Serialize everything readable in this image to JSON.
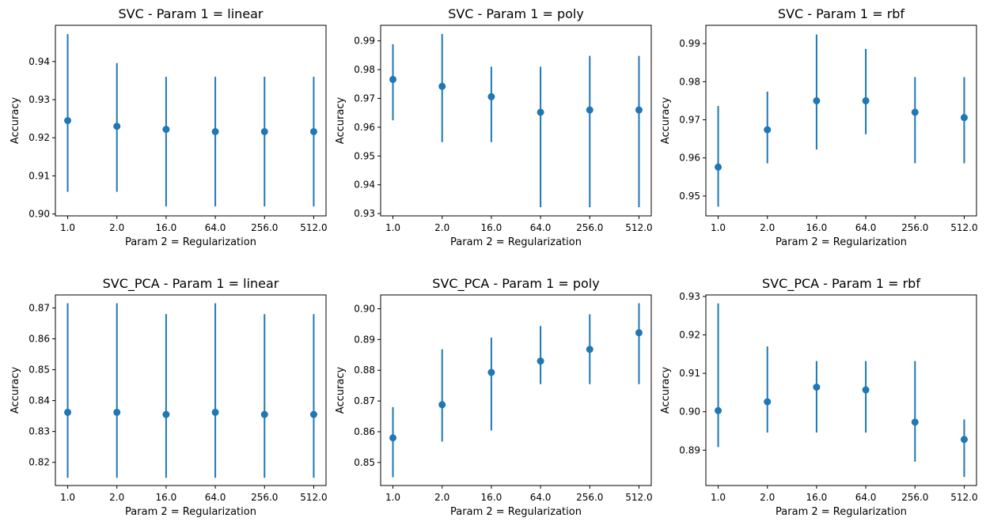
{
  "chart_data": [
    {
      "type": "scatter",
      "title": "SVC - Param 1 = linear",
      "xlabel": "Param 2 = Regularization",
      "ylabel": "Accuracy",
      "categories": [
        "1.0",
        "2.0",
        "16.0",
        "64.0",
        "256.0",
        "512.0"
      ],
      "values": [
        0.9245,
        0.923,
        0.9222,
        0.9216,
        0.9216,
        0.9216
      ],
      "err_low": [
        0.9058,
        0.9058,
        0.902,
        0.902,
        0.902,
        0.902
      ],
      "err_high": [
        0.9472,
        0.9396,
        0.936,
        0.936,
        0.936,
        0.936
      ],
      "ylim": [
        0.8995,
        0.9495
      ],
      "yticks": [
        "0.90",
        "0.91",
        "0.92",
        "0.93",
        "0.94"
      ],
      "grid": false
    },
    {
      "type": "scatter",
      "title": "SVC - Param 1 = poly",
      "xlabel": "Param 2 = Regularization",
      "ylabel": "Accuracy",
      "categories": [
        "1.0",
        "2.0",
        "16.0",
        "64.0",
        "256.0",
        "512.0"
      ],
      "values": [
        0.9766,
        0.9742,
        0.9706,
        0.9652,
        0.966,
        0.966
      ],
      "err_low": [
        0.9624,
        0.9548,
        0.9548,
        0.9322,
        0.9322,
        0.9322
      ],
      "err_high": [
        0.9888,
        0.9924,
        0.981,
        0.981,
        0.9848,
        0.9848
      ],
      "ylim": [
        0.9292,
        0.9954
      ],
      "yticks": [
        "0.93",
        "0.94",
        "0.95",
        "0.96",
        "0.97",
        "0.98",
        "0.99"
      ],
      "grid": false
    },
    {
      "type": "scatter",
      "title": "SVC - Param 1 = rbf",
      "xlabel": "Param 2 = Regularization",
      "ylabel": "Accuracy",
      "categories": [
        "1.0",
        "2.0",
        "16.0",
        "64.0",
        "256.0",
        "512.0"
      ],
      "values": [
        0.9576,
        0.9674,
        0.975,
        0.975,
        0.972,
        0.9706
      ],
      "err_low": [
        0.9472,
        0.9586,
        0.9622,
        0.9662,
        0.9586,
        0.9586
      ],
      "err_high": [
        0.9736,
        0.9774,
        0.9924,
        0.9886,
        0.9812,
        0.9812
      ],
      "ylim": [
        0.9448,
        0.9948
      ],
      "yticks": [
        "0.95",
        "0.96",
        "0.97",
        "0.98",
        "0.99"
      ],
      "grid": false
    },
    {
      "type": "scatter",
      "title": "SVC_PCA - Param 1 = linear",
      "xlabel": "Param 2 = Regularization",
      "ylabel": "Accuracy",
      "categories": [
        "1.0",
        "2.0",
        "16.0",
        "64.0",
        "256.0",
        "512.0"
      ],
      "values": [
        0.8362,
        0.8362,
        0.8355,
        0.8362,
        0.8355,
        0.8355
      ],
      "err_low": [
        0.815,
        0.815,
        0.815,
        0.815,
        0.815,
        0.815
      ],
      "err_high": [
        0.8715,
        0.8715,
        0.868,
        0.8715,
        0.868,
        0.868
      ],
      "ylim": [
        0.8125,
        0.8742
      ],
      "yticks": [
        "0.82",
        "0.83",
        "0.84",
        "0.85",
        "0.86",
        "0.87"
      ],
      "grid": false
    },
    {
      "type": "scatter",
      "title": "SVC_PCA - Param 1 = poly",
      "xlabel": "Param 2 = Regularization",
      "ylabel": "Accuracy",
      "categories": [
        "1.0",
        "2.0",
        "16.0",
        "64.0",
        "256.0",
        "512.0"
      ],
      "values": [
        0.858,
        0.8688,
        0.8793,
        0.883,
        0.8868,
        0.8922
      ],
      "err_low": [
        0.8452,
        0.8568,
        0.8604,
        0.8755,
        0.8755,
        0.8755
      ],
      "err_high": [
        0.868,
        0.8868,
        0.8906,
        0.8944,
        0.8982,
        0.9018
      ],
      "ylim": [
        0.8425,
        0.9045
      ],
      "yticks": [
        "0.85",
        "0.86",
        "0.87",
        "0.88",
        "0.89",
        "0.90"
      ],
      "grid": false
    },
    {
      "type": "scatter",
      "title": "SVC_PCA - Param 1 = rbf",
      "xlabel": "Param 2 = Regularization",
      "ylabel": "Accuracy",
      "categories": [
        "1.0",
        "2.0",
        "16.0",
        "64.0",
        "256.0",
        "512.0"
      ],
      "values": [
        0.9003,
        0.9026,
        0.9064,
        0.9057,
        0.8973,
        0.8928
      ],
      "err_low": [
        0.8908,
        0.8946,
        0.8946,
        0.8946,
        0.887,
        0.883
      ],
      "err_high": [
        0.9282,
        0.917,
        0.9132,
        0.9132,
        0.9132,
        0.898
      ],
      "ylim": [
        0.8808,
        0.9304
      ],
      "yticks": [
        "0.89",
        "0.90",
        "0.91",
        "0.92",
        "0.93"
      ],
      "grid": false
    }
  ],
  "colors": {
    "series": "#1f77b4",
    "axes": "#000000",
    "background": "#ffffff"
  }
}
